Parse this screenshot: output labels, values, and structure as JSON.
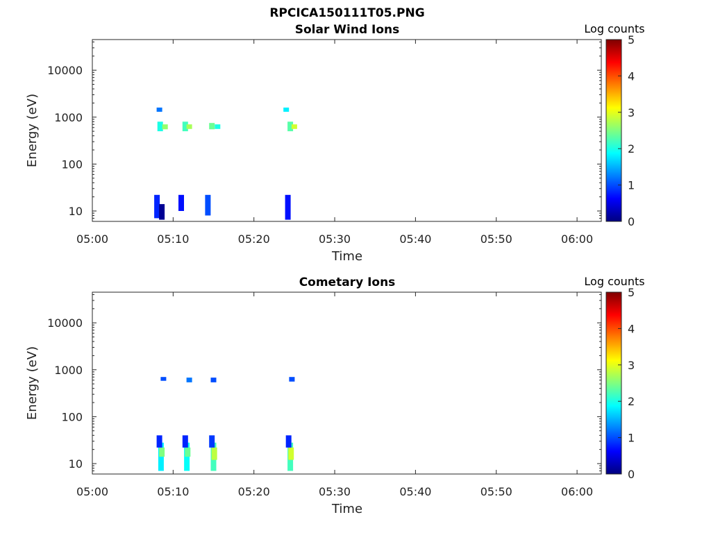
{
  "figure_title": "RPCICA150111T05.PNG",
  "colors": {
    "colormap": "jet",
    "axis": "#262626"
  },
  "chart_data": [
    {
      "type": "heatmap",
      "title": "Solar Wind Ions",
      "xlabel": "Time",
      "ylabel": "Energy (eV)",
      "x_axis": {
        "kind": "time",
        "range": [
          "05:00",
          "06:03"
        ],
        "ticks": [
          "05:00",
          "05:10",
          "05:20",
          "05:30",
          "05:40",
          "05:50",
          "06:00"
        ]
      },
      "y_axis": {
        "scale": "log",
        "range": [
          6,
          45000
        ],
        "ticks": [
          10,
          100,
          1000,
          10000
        ],
        "tick_labels": [
          "10",
          "100",
          "1000",
          "10000"
        ]
      },
      "colorbar": {
        "label": "Log counts",
        "range": [
          0,
          5
        ],
        "ticks": [
          "0",
          "1",
          "2",
          "3",
          "4",
          "5"
        ]
      },
      "cells": [
        {
          "time": "05:08",
          "energy_range": [
            7,
            22
          ],
          "log_counts": 0.8
        },
        {
          "time": "05:08.6",
          "energy_range": [
            6.5,
            14
          ],
          "log_counts": 0.1
        },
        {
          "time": "05:08.3",
          "energy_range": [
            1300,
            1600
          ],
          "log_counts": 1.2
        },
        {
          "time": "05:08.4",
          "energy_range": [
            500,
            800
          ],
          "log_counts": 2.0
        },
        {
          "time": "05:09",
          "energy_range": [
            550,
            700
          ],
          "log_counts": 2.6
        },
        {
          "time": "05:11",
          "energy_range": [
            10,
            22
          ],
          "log_counts": 0.7
        },
        {
          "time": "05:11.5",
          "energy_range": [
            500,
            800
          ],
          "log_counts": 2.2
        },
        {
          "time": "05:12",
          "energy_range": [
            560,
            700
          ],
          "log_counts": 2.7
        },
        {
          "time": "05:14.3",
          "energy_range": [
            8,
            22
          ],
          "log_counts": 1.0
        },
        {
          "time": "05:14.8",
          "energy_range": [
            550,
            750
          ],
          "log_counts": 2.4
        },
        {
          "time": "05:15.5",
          "energy_range": [
            560,
            700
          ],
          "log_counts": 2.0
        },
        {
          "time": "05:24.2",
          "energy_range": [
            6.5,
            22
          ],
          "log_counts": 0.7
        },
        {
          "time": "05:24",
          "energy_range": [
            1300,
            1600
          ],
          "log_counts": 1.8
        },
        {
          "time": "05:24.5",
          "energy_range": [
            500,
            800
          ],
          "log_counts": 2.3
        },
        {
          "time": "05:25",
          "energy_range": [
            560,
            700
          ],
          "log_counts": 2.9
        }
      ]
    },
    {
      "type": "heatmap",
      "title": "Cometary Ions",
      "xlabel": "Time",
      "ylabel": "Energy (eV)",
      "x_axis": {
        "kind": "time",
        "range": [
          "05:00",
          "06:03"
        ],
        "ticks": [
          "05:00",
          "05:10",
          "05:20",
          "05:30",
          "05:40",
          "05:50",
          "06:00"
        ]
      },
      "y_axis": {
        "scale": "log",
        "range": [
          6,
          45000
        ],
        "ticks": [
          10,
          100,
          1000,
          10000
        ],
        "tick_labels": [
          "10",
          "100",
          "1000",
          "10000"
        ]
      },
      "colorbar": {
        "label": "Log counts",
        "range": [
          0,
          5
        ],
        "ticks": [
          "0",
          "1",
          "2",
          "3",
          "4",
          "5"
        ]
      },
      "cells": [
        {
          "time": "05:08.5",
          "energy_range": [
            7,
            28
          ],
          "log_counts": 1.8
        },
        {
          "time": "05:08.6",
          "energy_range": [
            14,
            22
          ],
          "log_counts": 2.5
        },
        {
          "time": "05:08.3",
          "energy_range": [
            22,
            40
          ],
          "log_counts": 0.8
        },
        {
          "time": "05:08.8",
          "energy_range": [
            580,
            700
          ],
          "log_counts": 1.0
        },
        {
          "time": "05:11.7",
          "energy_range": [
            7,
            28
          ],
          "log_counts": 1.9
        },
        {
          "time": "05:11.8",
          "energy_range": [
            14,
            22
          ],
          "log_counts": 2.4
        },
        {
          "time": "05:11.5",
          "energy_range": [
            22,
            40
          ],
          "log_counts": 0.8
        },
        {
          "time": "05:12",
          "energy_range": [
            540,
            680
          ],
          "log_counts": 1.2
        },
        {
          "time": "05:15",
          "energy_range": [
            7,
            28
          ],
          "log_counts": 2.2
        },
        {
          "time": "05:15.1",
          "energy_range": [
            12,
            22
          ],
          "log_counts": 2.8
        },
        {
          "time": "05:14.8",
          "energy_range": [
            22,
            40
          ],
          "log_counts": 0.9
        },
        {
          "time": "05:15",
          "energy_range": [
            540,
            680
          ],
          "log_counts": 1.0
        },
        {
          "time": "05:24.5",
          "energy_range": [
            7,
            28
          ],
          "log_counts": 2.2
        },
        {
          "time": "05:24.6",
          "energy_range": [
            12,
            22
          ],
          "log_counts": 2.9
        },
        {
          "time": "05:24.3",
          "energy_range": [
            22,
            40
          ],
          "log_counts": 0.8
        },
        {
          "time": "05:24.7",
          "energy_range": [
            560,
            700
          ],
          "log_counts": 1.0
        }
      ]
    }
  ]
}
